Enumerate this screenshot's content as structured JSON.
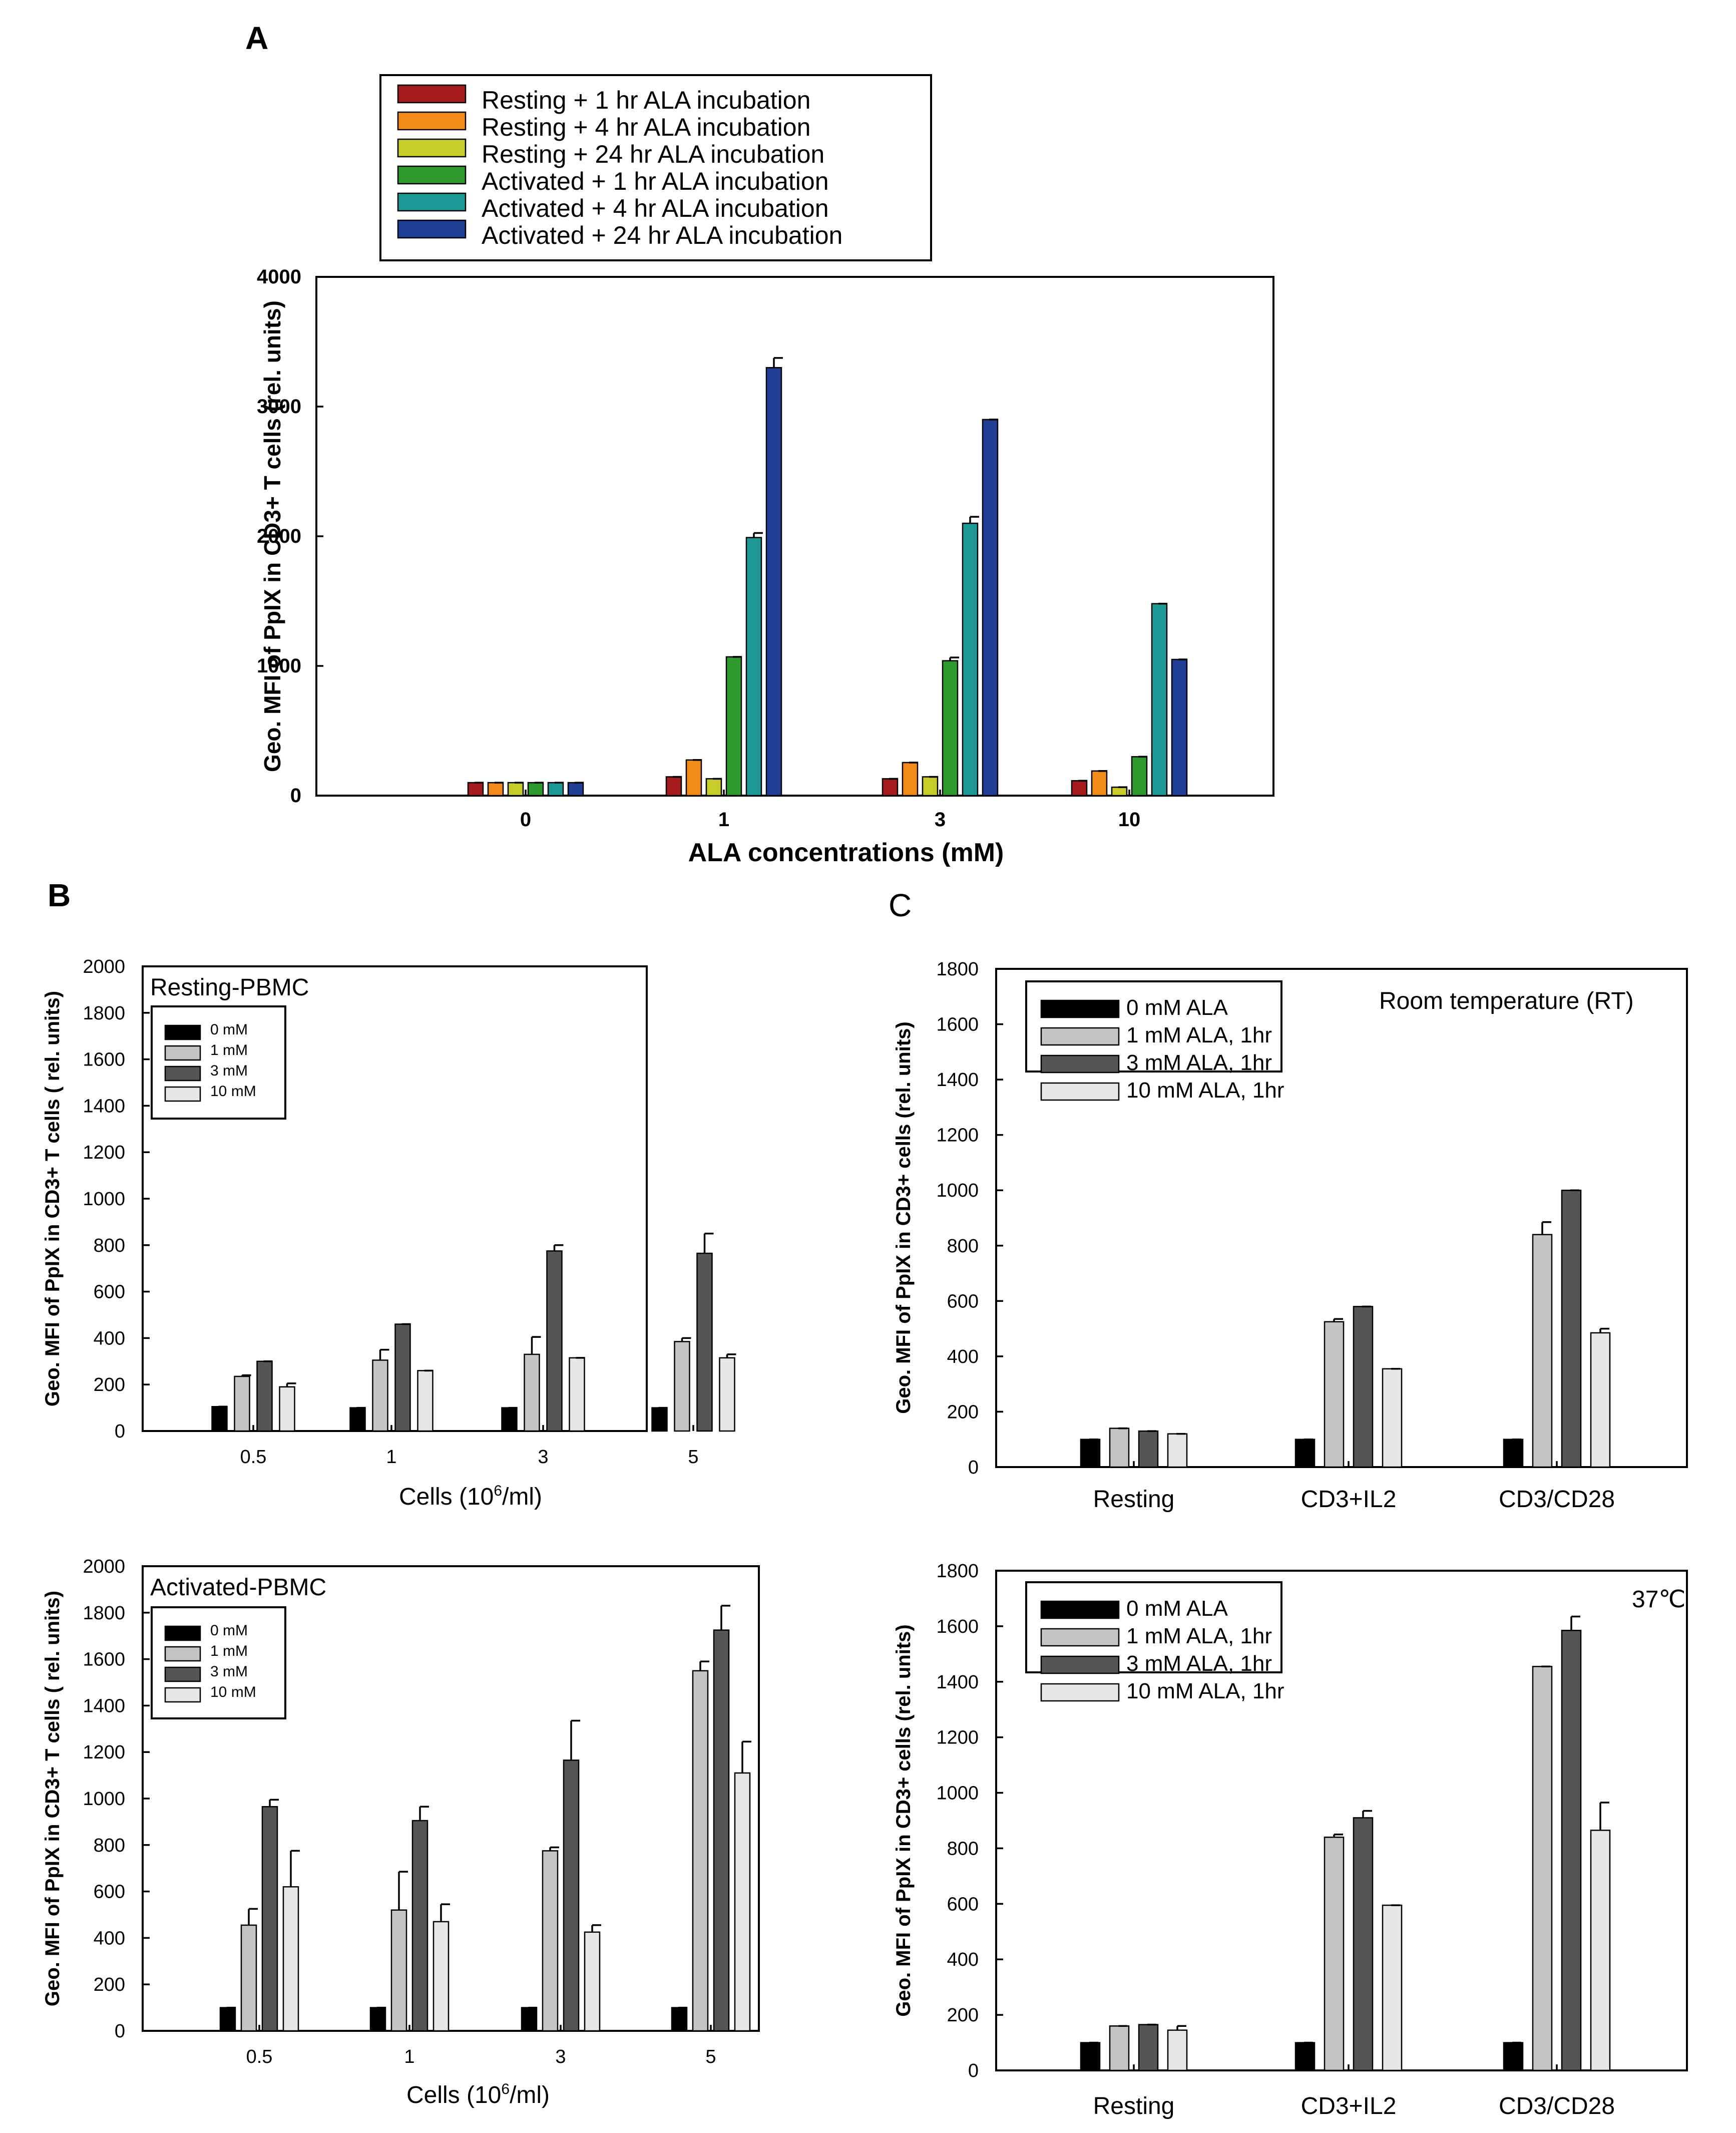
{
  "chart_data": [
    {
      "panel": "A",
      "type": "bar",
      "title": "",
      "xlabel": "ALA concentrations (mM)",
      "ylabel": "Geo. MFI of PpIX in CD3+ T cells (rel. units)",
      "ylim": [
        0,
        4000
      ],
      "yticks": [
        0,
        1000,
        2000,
        3000,
        4000
      ],
      "categories": [
        "0",
        "1",
        "3",
        "10"
      ],
      "series": [
        {
          "name": "Resting + 1 hr ALA incubation",
          "color": "#a61c1c",
          "values": [
            100,
            145,
            130,
            115
          ],
          "errors": [
            0,
            0,
            0,
            0
          ]
        },
        {
          "name": "Resting + 4 hr ALA incubation",
          "color": "#f28a1a",
          "values": [
            100,
            275,
            255,
            190
          ],
          "errors": [
            0,
            0,
            0,
            0
          ]
        },
        {
          "name": "Resting + 24 hr ALA incubation",
          "color": "#c8cc2a",
          "values": [
            100,
            130,
            145,
            65
          ],
          "errors": [
            0,
            0,
            0,
            0
          ]
        },
        {
          "name": "Activated + 1 hr ALA incubation",
          "color": "#2e9a2e",
          "values": [
            100,
            1070,
            1040,
            300
          ],
          "errors": [
            0,
            0,
            25,
            0
          ]
        },
        {
          "name": "Activated + 4 hr ALA incubation",
          "color": "#1e9a96",
          "values": [
            100,
            1990,
            2100,
            1480
          ],
          "errors": [
            0,
            35,
            50,
            0
          ]
        },
        {
          "name": "Activated + 24 hr ALA incubation",
          "color": "#1f3f95",
          "values": [
            100,
            3300,
            2900,
            1050
          ],
          "errors": [
            0,
            75,
            0,
            0
          ]
        }
      ]
    },
    {
      "panel": "B-top",
      "type": "bar",
      "title": "Resting-PBMC",
      "xlabel_main": "Cells (10",
      "xlabel_sup": "6",
      "xlabel_tail": "/ml)",
      "ylabel": "Geo. MFI of PpIX in CD3+ T cells ( rel. units)",
      "ylim": [
        0,
        2000
      ],
      "yticks": [
        0,
        200,
        400,
        600,
        800,
        1000,
        1200,
        1400,
        1600,
        1800,
        2000
      ],
      "categories": [
        "0.5",
        "1",
        "3",
        "5"
      ],
      "series": [
        {
          "name": "0 mM",
          "color": "#000000",
          "values": [
            105,
            100,
            100,
            100
          ],
          "errors": [
            0,
            0,
            0,
            0
          ]
        },
        {
          "name": "1 mM",
          "color": "#c4c4c4",
          "values": [
            235,
            305,
            330,
            385
          ],
          "errors": [
            5,
            45,
            75,
            15
          ]
        },
        {
          "name": "3 mM",
          "color": "#555555",
          "values": [
            300,
            460,
            775,
            765
          ],
          "errors": [
            0,
            0,
            25,
            85
          ]
        },
        {
          "name": "10 mM",
          "color": "#e6e6e6",
          "values": [
            190,
            260,
            315,
            315
          ],
          "errors": [
            15,
            0,
            0,
            15
          ]
        }
      ]
    },
    {
      "panel": "B-bottom",
      "type": "bar",
      "title": "Activated-PBMC",
      "xlabel_main": "Cells (10",
      "xlabel_sup": "6",
      "xlabel_tail": "/ml)",
      "ylabel": "Geo. MFI of PpIX in CD3+ T cells ( rel. units)",
      "ylim": [
        0,
        2000
      ],
      "yticks": [
        0,
        200,
        400,
        600,
        800,
        1000,
        1200,
        1400,
        1600,
        1800,
        2000
      ],
      "categories": [
        "0.5",
        "1",
        "3",
        "5"
      ],
      "series": [
        {
          "name": "0 mM",
          "color": "#000000",
          "values": [
            100,
            100,
            100,
            100
          ],
          "errors": [
            0,
            0,
            0,
            0
          ]
        },
        {
          "name": "1 mM",
          "color": "#c4c4c4",
          "values": [
            455,
            520,
            775,
            1550
          ],
          "errors": [
            70,
            165,
            15,
            40
          ]
        },
        {
          "name": "3 mM",
          "color": "#555555",
          "values": [
            965,
            905,
            1165,
            1725
          ],
          "errors": [
            30,
            60,
            170,
            105
          ]
        },
        {
          "name": "10 mM",
          "color": "#e6e6e6",
          "values": [
            620,
            470,
            425,
            1110
          ],
          "errors": [
            155,
            75,
            30,
            135
          ]
        }
      ]
    },
    {
      "panel": "C-top",
      "type": "bar",
      "title": "Room temperature (RT)",
      "xlabel": "",
      "ylabel": "Geo. MFI of PpIX in CD3+  cells  (rel. units)",
      "ylim": [
        0,
        1800
      ],
      "yticks": [
        0,
        200,
        400,
        600,
        800,
        1000,
        1200,
        1400,
        1600,
        1800
      ],
      "categories": [
        "Resting",
        "CD3+IL2",
        "CD3/CD28"
      ],
      "series": [
        {
          "name": "0 mM ALA",
          "color": "#000000",
          "values": [
            100,
            100,
            100
          ],
          "errors": [
            0,
            0,
            0
          ]
        },
        {
          "name": "1 mM ALA, 1hr",
          "color": "#c4c4c4",
          "values": [
            140,
            525,
            840
          ],
          "errors": [
            0,
            10,
            45
          ]
        },
        {
          "name": "3 mM ALA, 1hr",
          "color": "#555555",
          "values": [
            130,
            580,
            1000
          ],
          "errors": [
            0,
            0,
            0
          ]
        },
        {
          "name": "10 mM ALA, 1hr",
          "color": "#e6e6e6",
          "values": [
            120,
            355,
            485
          ],
          "errors": [
            0,
            0,
            15
          ]
        }
      ]
    },
    {
      "panel": "C-bottom",
      "type": "bar",
      "title": "37℃",
      "xlabel": "",
      "ylabel": "Geo. MFI of PpIX in CD3+  cells  (rel. units)",
      "ylim": [
        0,
        1800
      ],
      "yticks": [
        0,
        200,
        400,
        600,
        800,
        1000,
        1200,
        1400,
        1600,
        1800
      ],
      "categories": [
        "Resting",
        "CD3+IL2",
        "CD3/CD28"
      ],
      "series": [
        {
          "name": "0 mM ALA",
          "color": "#000000",
          "values": [
            100,
            100,
            100
          ],
          "errors": [
            0,
            0,
            0
          ]
        },
        {
          "name": "1 mM ALA, 1hr",
          "color": "#c4c4c4",
          "values": [
            160,
            840,
            1455
          ],
          "errors": [
            0,
            10,
            0
          ]
        },
        {
          "name": "3 mM ALA, 1hr",
          "color": "#555555",
          "values": [
            165,
            910,
            1585
          ],
          "errors": [
            0,
            25,
            50
          ]
        },
        {
          "name": "10 mM ALA, 1hr",
          "color": "#e6e6e6",
          "values": [
            145,
            595,
            865
          ],
          "errors": [
            15,
            0,
            100
          ]
        }
      ]
    }
  ],
  "labels": {
    "panelA": "A",
    "panelB": "B",
    "panelC": "C"
  }
}
